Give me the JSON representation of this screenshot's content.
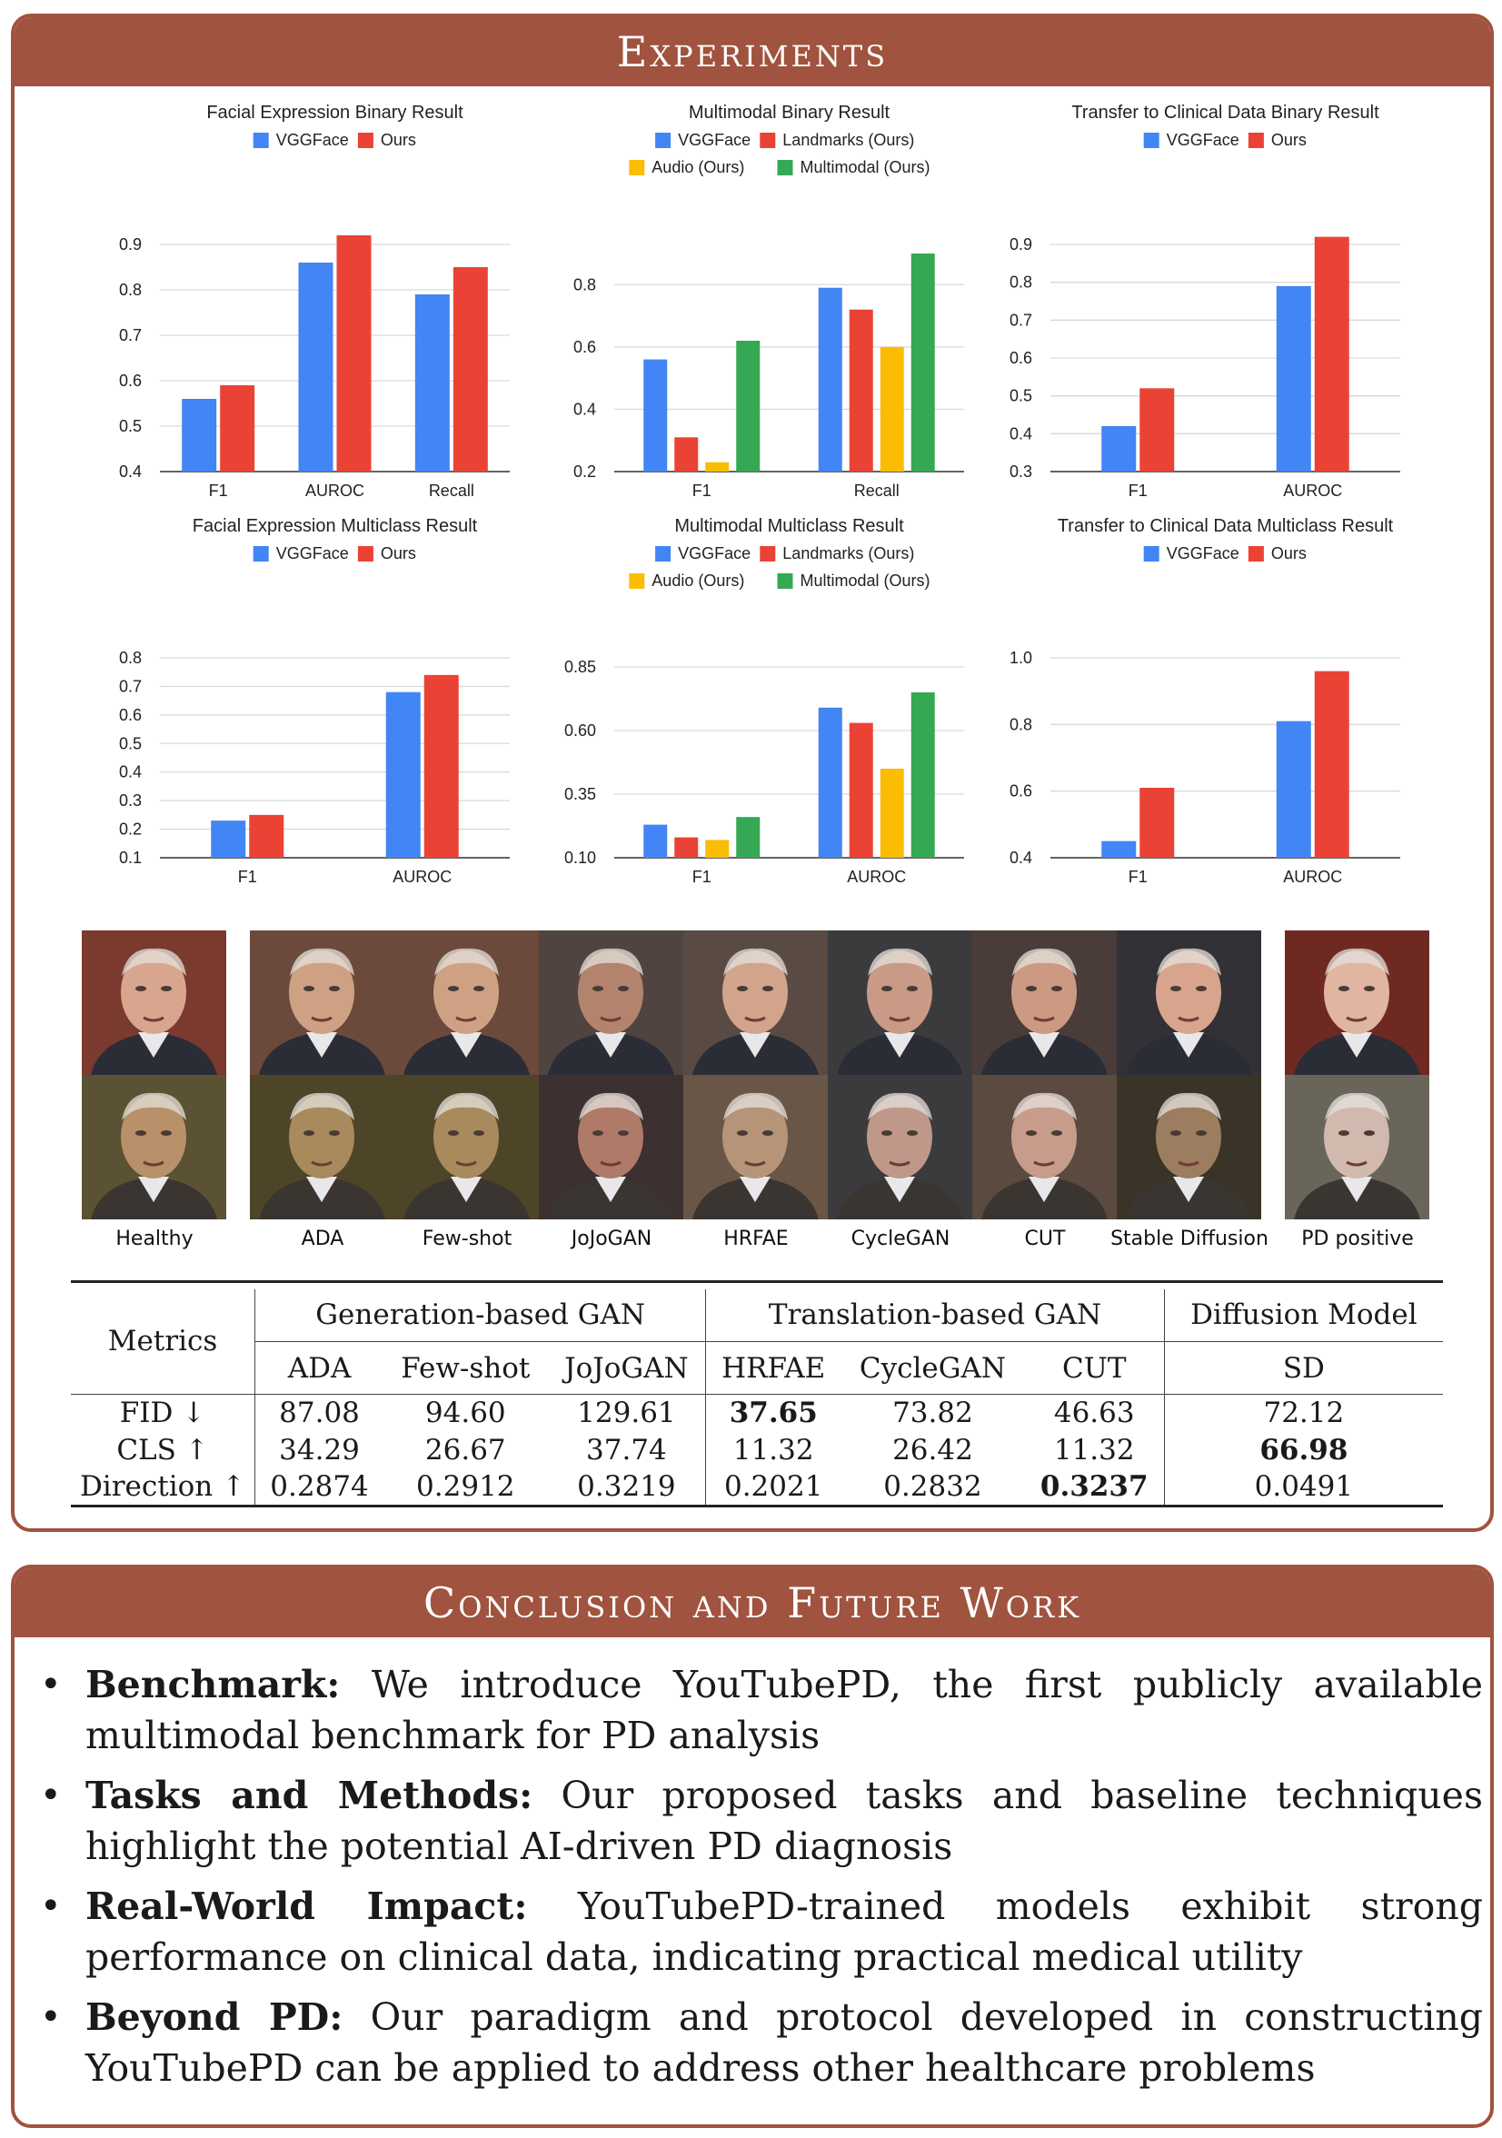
{
  "experiments": {
    "title": "Experiments",
    "charts": [
      {
        "title": "Facial Expression Binary Result",
        "legend": [
          "VGGFace",
          "Ours"
        ]
      },
      {
        "title": "Multimodal Binary Result",
        "legend": [
          "VGGFace",
          "Landmarks (Ours)",
          "Audio (Ours)",
          "Multimodal (Ours)"
        ]
      },
      {
        "title": "Transfer to Clinical Data Binary Result",
        "legend": [
          "VGGFace",
          "Ours"
        ]
      },
      {
        "title": "Facial Expression Multiclass Result",
        "legend": [
          "VGGFace",
          "Ours"
        ]
      },
      {
        "title": "Multimodal Multiclass Result",
        "legend": [
          "VGGFace",
          "Landmarks (Ours)",
          "Audio (Ours)",
          "Multimodal (Ours)"
        ]
      },
      {
        "title": "Transfer to Clinical Data Multiclass Result",
        "legend": [
          "VGGFace",
          "Ours"
        ]
      }
    ],
    "faces": {
      "labels": [
        "Healthy",
        "ADA",
        "Few-shot",
        "JoJoGAN",
        "HRFAE",
        "CycleGAN",
        "CUT",
        "Stable Diffusion",
        "PD positive"
      ]
    },
    "table": {
      "metrics_label": "Metrics",
      "groups": [
        "Generation-based GAN",
        "Translation-based GAN",
        "Diffusion Model"
      ],
      "methods": [
        "ADA",
        "Few-shot",
        "JoJoGAN",
        "HRFAE",
        "CycleGAN",
        "CUT",
        "SD"
      ],
      "rows": [
        {
          "name": "FID ↓",
          "values": [
            "87.08",
            "94.60",
            "129.61",
            "37.65",
            "73.82",
            "46.63",
            "72.12"
          ],
          "bold": 3
        },
        {
          "name": "CLS ↑",
          "values": [
            "34.29",
            "26.67",
            "37.74",
            "11.32",
            "26.42",
            "11.32",
            "66.98"
          ],
          "bold": 6
        },
        {
          "name": "Direction ↑",
          "values": [
            "0.2874",
            "0.2912",
            "0.3219",
            "0.2021",
            "0.2832",
            "0.3237",
            "0.0491"
          ],
          "bold": 5
        }
      ]
    }
  },
  "conclusion": {
    "title": "Conclusion and Future Work",
    "items": [
      {
        "lead": "Benchmark:",
        "text": "We introduce YouTubePD, the first publicly available multimodal benchmark for PD analysis"
      },
      {
        "lead": "Tasks and Methods:",
        "text": "Our proposed tasks and baseline techniques highlight the potential AI-driven PD diagnosis"
      },
      {
        "lead": "Real-World Impact:",
        "text": "YouTubePD-trained models exhibit strong performance on clinical data, indicating practical medical utility"
      },
      {
        "lead": "Beyond PD:",
        "text": "Our paradigm and protocol developed in constructing YouTubePD can be applied to address other healthcare problems"
      }
    ]
  },
  "colors": {
    "accent": "#a0533e",
    "blue": "#4285f4",
    "red": "#ea4335",
    "yellow": "#fbbc04",
    "green": "#34a853"
  },
  "chart_data": [
    {
      "type": "bar",
      "title": "Facial Expression Binary Result",
      "categories": [
        "F1",
        "AUROC",
        "Recall"
      ],
      "series": [
        {
          "name": "VGGFace",
          "values": [
            0.56,
            0.86,
            0.79
          ]
        },
        {
          "name": "Ours",
          "values": [
            0.59,
            0.92,
            0.85
          ]
        }
      ],
      "ylim": [
        0.4,
        0.9
      ],
      "yticks": [
        "0.4",
        "0.5",
        "0.6",
        "0.7",
        "0.8",
        "0.9"
      ],
      "legend": "top",
      "grid": true
    },
    {
      "type": "bar",
      "title": "Multimodal Binary Result",
      "categories": [
        "F1",
        "Recall"
      ],
      "series": [
        {
          "name": "VGGFace",
          "values": [
            0.56,
            0.79
          ]
        },
        {
          "name": "Landmarks (Ours)",
          "values": [
            0.31,
            0.72
          ]
        },
        {
          "name": "Audio (Ours)",
          "values": [
            0.23,
            0.6
          ]
        },
        {
          "name": "Multimodal (Ours)",
          "values": [
            0.62,
            0.9
          ]
        }
      ],
      "ylim": [
        0.2,
        0.9
      ],
      "yticks": [
        "0.2",
        "0.4",
        "0.6",
        "0.8"
      ],
      "legend": "top",
      "grid": true
    },
    {
      "type": "bar",
      "title": "Transfer to Clinical Data Binary Result",
      "categories": [
        "F1",
        "AUROC"
      ],
      "series": [
        {
          "name": "VGGFace",
          "values": [
            0.42,
            0.79
          ]
        },
        {
          "name": "Ours",
          "values": [
            0.52,
            0.92
          ]
        }
      ],
      "ylim": [
        0.3,
        0.9
      ],
      "yticks": [
        "0.3",
        "0.4",
        "0.5",
        "0.6",
        "0.7",
        "0.8",
        "0.9"
      ],
      "legend": "top",
      "grid": true
    },
    {
      "type": "bar",
      "title": "Facial Expression Multiclass Result",
      "categories": [
        "F1",
        "AUROC"
      ],
      "series": [
        {
          "name": "VGGFace",
          "values": [
            0.23,
            0.68
          ]
        },
        {
          "name": "Ours",
          "values": [
            0.25,
            0.74
          ]
        }
      ],
      "ylim": [
        0.1,
        0.8
      ],
      "yticks": [
        "0.1",
        "0.2",
        "0.3",
        "0.4",
        "0.5",
        "0.6",
        "0.7",
        "0.8"
      ],
      "legend": "top",
      "grid": true
    },
    {
      "type": "bar",
      "title": "Multimodal Multiclass Result",
      "categories": [
        "F1",
        "AUROC"
      ],
      "series": [
        {
          "name": "VGGFace",
          "values": [
            0.23,
            0.69
          ]
        },
        {
          "name": "Landmarks (Ours)",
          "values": [
            0.18,
            0.63
          ]
        },
        {
          "name": "Audio (Ours)",
          "values": [
            0.17,
            0.45
          ]
        },
        {
          "name": "Multimodal (Ours)",
          "values": [
            0.26,
            0.75
          ]
        }
      ],
      "ylim": [
        0.1,
        0.85
      ],
      "yticks": [
        "0.10",
        "0.35",
        "0.60",
        "0.85"
      ],
      "legend": "top",
      "grid": true
    },
    {
      "type": "bar",
      "title": "Transfer to Clinical Data Multiclass Result",
      "categories": [
        "F1",
        "AUROC"
      ],
      "series": [
        {
          "name": "VGGFace",
          "values": [
            0.45,
            0.81
          ]
        },
        {
          "name": "Ours",
          "values": [
            0.61,
            0.96
          ]
        }
      ],
      "ylim": [
        0.4,
        1.0
      ],
      "yticks": [
        "0.4",
        "0.6",
        "0.8",
        "1.0"
      ],
      "legend": "top",
      "grid": true
    }
  ]
}
